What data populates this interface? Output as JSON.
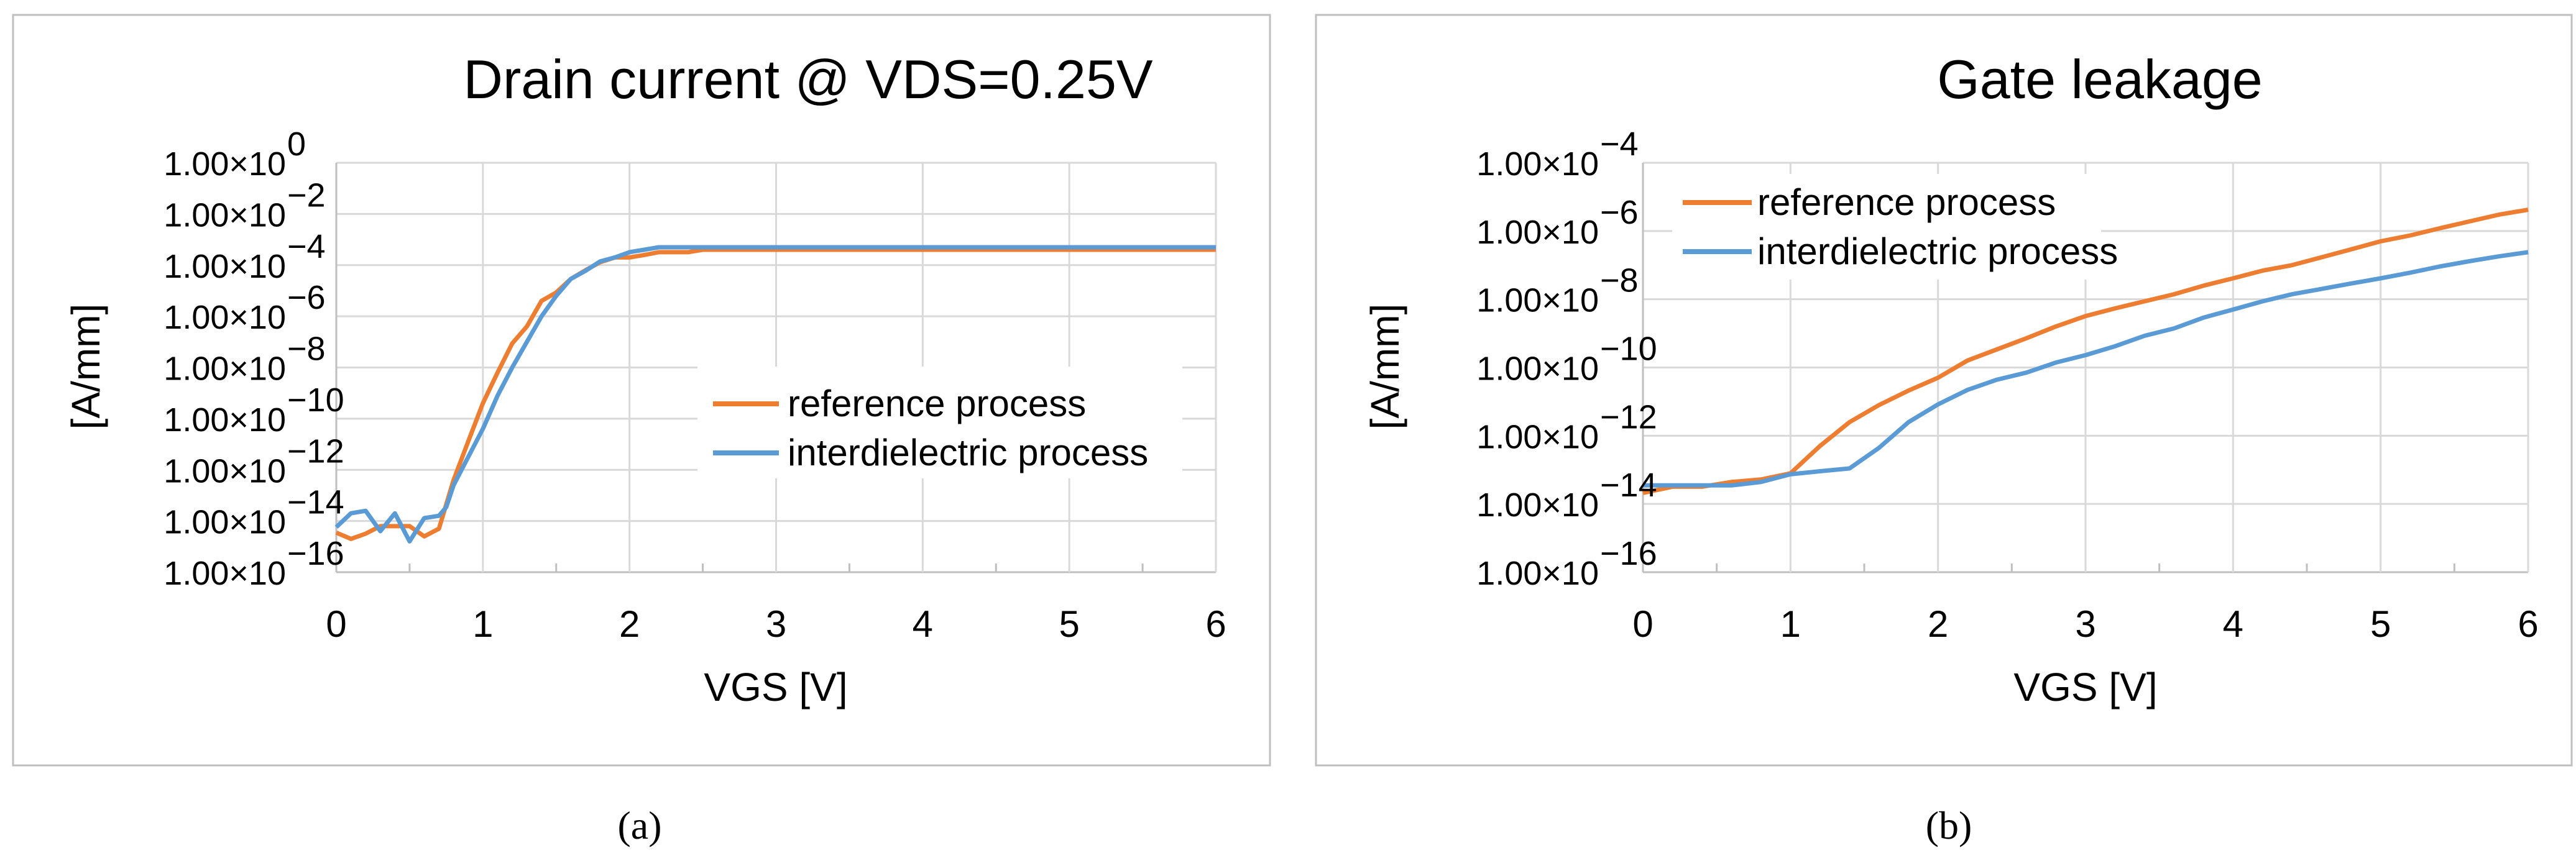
{
  "colors": {
    "reference": "#ED7D31",
    "interdielectric": "#5B9BD5"
  },
  "chart_data": [
    {
      "type": "line",
      "caption": "(a)",
      "title": "Drain current @ VDS=0.25V",
      "xlabel": "VGS [V]",
      "ylabel": "[A/mm]",
      "xlim": [
        0,
        6
      ],
      "ylim": [
        1e-16,
        1
      ],
      "yscale": "log",
      "grid": true,
      "legend_position": "center-right",
      "x_ticks": [
        "0",
        "1",
        "2",
        "3",
        "4",
        "5",
        "6"
      ],
      "y_ticks": [
        {
          "mantissa": "1.00×10",
          "exponent": "0"
        },
        {
          "mantissa": "1.00×10",
          "exponent": "−2"
        },
        {
          "mantissa": "1.00×10",
          "exponent": "−4"
        },
        {
          "mantissa": "1.00×10",
          "exponent": "−6"
        },
        {
          "mantissa": "1.00×10",
          "exponent": "−8"
        },
        {
          "mantissa": "1.00×10",
          "exponent": "−10"
        },
        {
          "mantissa": "1.00×10",
          "exponent": "−12"
        },
        {
          "mantissa": "1.00×10",
          "exponent": "−14"
        },
        {
          "mantissa": "1.00×10",
          "exponent": "−16"
        }
      ],
      "series": [
        {
          "name": "reference process",
          "color": "#ED7D31",
          "x": [
            0,
            0.1,
            0.2,
            0.3,
            0.4,
            0.5,
            0.6,
            0.7,
            0.8,
            0.9,
            1.0,
            1.1,
            1.2,
            1.3,
            1.4,
            1.5,
            1.6,
            1.7,
            1.8,
            1.9,
            2.0,
            2.1,
            2.2,
            2.4,
            2.5,
            6
          ],
          "y": [
            3.5e-15,
            2e-15,
            3.2e-15,
            6.3e-15,
            6.3e-15,
            6.3e-15,
            2.5e-15,
            5e-15,
            4e-13,
            1.3e-11,
            4e-10,
            6.3e-09,
            8.7e-08,
            4e-07,
            4e-06,
            8.5e-06,
            2.9e-05,
            6.3e-05,
            0.00013,
            0.0002,
            0.0002,
            0.00025,
            0.00032,
            0.00032,
            0.0004,
            0.0004
          ]
        },
        {
          "name": "interdielectric process",
          "color": "#5B9BD5",
          "x": [
            0,
            0.1,
            0.2,
            0.3,
            0.4,
            0.5,
            0.6,
            0.7,
            0.75,
            0.8,
            0.9,
            1.0,
            1.1,
            1.2,
            1.3,
            1.4,
            1.5,
            1.6,
            1.7,
            1.8,
            1.9,
            2.0,
            2.1,
            2.2,
            6
          ],
          "y": [
            5.8e-15,
            2e-14,
            2.5e-14,
            4e-15,
            2e-14,
            1.6e-15,
            1.3e-14,
            1.6e-14,
            3.5e-14,
            2.5e-13,
            3.2e-12,
            4e-11,
            7.9e-10,
            1e-08,
            1e-07,
            1e-06,
            6.3e-06,
            2.9e-05,
            6e-05,
            0.00014,
            0.0002,
            0.00032,
            0.0004,
            0.0005,
            0.0005
          ]
        }
      ]
    },
    {
      "type": "line",
      "caption": "(b)",
      "title": "Gate leakage",
      "xlabel": "VGS [V]",
      "ylabel": "[A/mm]",
      "xlim": [
        0,
        6
      ],
      "ylim": [
        1e-16,
        0.0001
      ],
      "yscale": "log",
      "grid": true,
      "legend_position": "top-left",
      "x_ticks": [
        "0",
        "1",
        "2",
        "3",
        "4",
        "5",
        "6"
      ],
      "y_ticks": [
        {
          "mantissa": "1.00×10",
          "exponent": "−4"
        },
        {
          "mantissa": "1.00×10",
          "exponent": "−6"
        },
        {
          "mantissa": "1.00×10",
          "exponent": "−8"
        },
        {
          "mantissa": "1.00×10",
          "exponent": "−10"
        },
        {
          "mantissa": "1.00×10",
          "exponent": "−12"
        },
        {
          "mantissa": "1.00×10",
          "exponent": "−14"
        },
        {
          "mantissa": "1.00×10",
          "exponent": "−16"
        }
      ],
      "series": [
        {
          "name": "reference process",
          "color": "#ED7D31",
          "x": [
            0,
            0.2,
            0.4,
            0.6,
            0.8,
            1.0,
            1.2,
            1.4,
            1.6,
            1.8,
            2.0,
            2.2,
            2.4,
            2.6,
            2.8,
            3.0,
            3.2,
            3.4,
            3.6,
            3.8,
            4.0,
            4.2,
            4.4,
            4.6,
            4.8,
            5.0,
            5.2,
            5.4,
            5.6,
            5.8,
            6.0
          ],
          "y": [
            2.1e-14,
            3.2e-14,
            3.2e-14,
            4.4e-14,
            5.2e-14,
            7.9e-14,
            5e-13,
            2.5e-12,
            7.9e-12,
            2.1e-11,
            5e-11,
            1.6e-10,
            3.4e-10,
            7.2e-10,
            1.6e-09,
            3.2e-09,
            5.4e-09,
            8.7e-09,
            1.4e-08,
            2.5e-08,
            4.1e-08,
            6.9e-08,
            1e-07,
            1.7e-07,
            2.9e-07,
            5e-07,
            7.4e-07,
            1.2e-06,
            1.9e-06,
            3e-06,
            4.2e-06
          ]
        },
        {
          "name": "interdielectric process",
          "color": "#5B9BD5",
          "x": [
            0,
            0.2,
            0.4,
            0.6,
            0.8,
            1.0,
            1.2,
            1.4,
            1.6,
            1.8,
            2.0,
            2.2,
            2.4,
            2.6,
            2.8,
            3.0,
            3.2,
            3.4,
            3.6,
            3.8,
            4.0,
            4.2,
            4.4,
            4.6,
            4.8,
            5.0,
            5.2,
            5.4,
            5.6,
            5.8,
            6.0
          ],
          "y": [
            3.5e-14,
            3.5e-14,
            3.5e-14,
            3.5e-14,
            4.4e-14,
            7.4e-14,
            9.1e-14,
            1.1e-13,
            4.4e-13,
            2.5e-12,
            8.3e-12,
            2.2e-11,
            4.4e-11,
            7.1e-11,
            1.4e-10,
            2.3e-10,
            4.2e-10,
            8.5e-10,
            1.4e-09,
            2.9e-09,
            5e-09,
            8.7e-09,
            1.4e-08,
            2e-08,
            2.9e-08,
            4.1e-08,
            6e-08,
            9.1e-08,
            1.3e-07,
            1.8e-07,
            2.4e-07
          ]
        }
      ]
    }
  ]
}
